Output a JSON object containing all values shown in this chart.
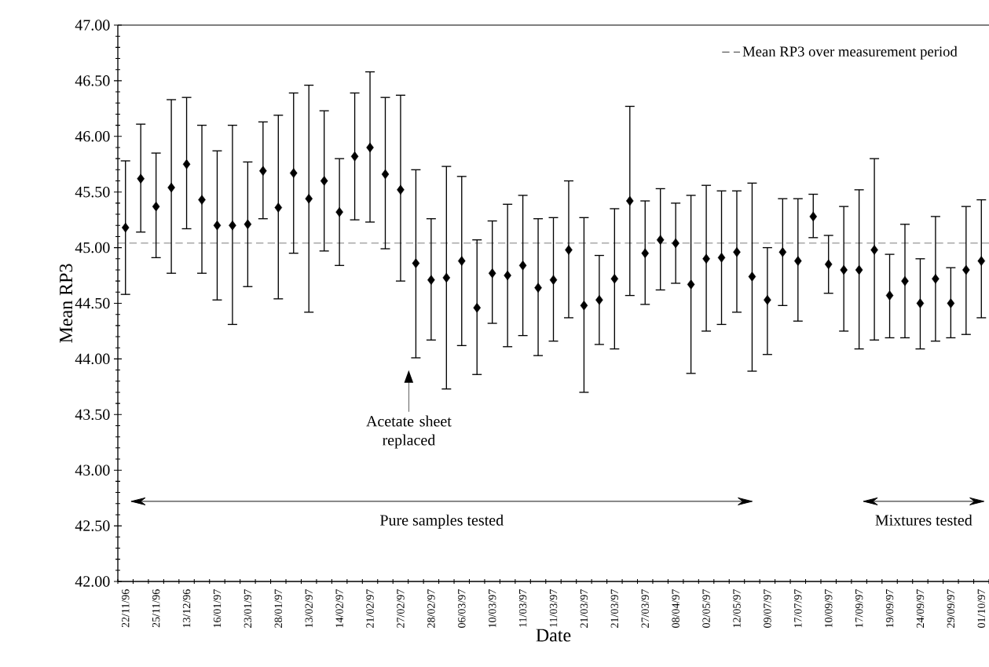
{
  "chart_data": {
    "type": "scatter",
    "xlabel": "Date",
    "ylabel": "Mean RP3",
    "categories": [
      "22/11/96",
      null,
      "25/11/96",
      null,
      "13/12/96",
      null,
      "16/01/97",
      null,
      "23/01/97",
      null,
      "28/01/97",
      null,
      "13/02/97",
      null,
      "14/02/97",
      null,
      "21/02/97",
      null,
      "27/02/97",
      null,
      "28/02/97",
      null,
      "06/03/97",
      null,
      "10/03/97",
      null,
      "11/03/97",
      null,
      "11/03/97",
      null,
      "21/03/97",
      null,
      "21/03/97",
      null,
      "27/03/97",
      null,
      "08/04/97",
      null,
      "02/05/97",
      null,
      "12/05/97",
      null,
      "09/07/97",
      null,
      "17/07/97",
      null,
      "10/09/97",
      null,
      "17/09/97",
      null,
      "19/09/97",
      null,
      "24/09/97",
      null,
      "29/09/97",
      null,
      "01/10/97"
    ],
    "series": [
      {
        "color": "#000000",
        "values": [
          45.18,
          45.62,
          45.37,
          45.54,
          45.75,
          45.43,
          45.2,
          45.2,
          45.21,
          45.69,
          45.36,
          45.67,
          45.44,
          45.6,
          45.32,
          45.82,
          45.9,
          45.66,
          45.52,
          44.86,
          44.71,
          44.73,
          44.88,
          44.46,
          44.77,
          44.75,
          44.84,
          44.64,
          44.71,
          44.98,
          44.48,
          44.53,
          44.72,
          45.42,
          44.95,
          45.07,
          45.04,
          44.67,
          44.9,
          44.91,
          44.96,
          44.74,
          44.53,
          44.96,
          44.88,
          45.28,
          44.85,
          44.8,
          44.8,
          44.98,
          44.57,
          44.7,
          44.5,
          44.72,
          44.5,
          44.8,
          44.88
        ],
        "errors": [
          [
            44.58,
            45.78
          ],
          [
            45.14,
            46.11
          ],
          [
            44.91,
            45.85
          ],
          [
            44.77,
            46.33
          ],
          [
            45.17,
            46.35
          ],
          [
            44.77,
            46.1
          ],
          [
            44.53,
            45.87
          ],
          [
            44.31,
            46.1
          ],
          [
            44.65,
            45.77
          ],
          [
            45.26,
            46.13
          ],
          [
            44.54,
            46.19
          ],
          [
            44.95,
            46.39
          ],
          [
            44.42,
            46.46
          ],
          [
            44.97,
            46.23
          ],
          [
            44.84,
            45.8
          ],
          [
            45.25,
            46.39
          ],
          [
            45.23,
            46.58
          ],
          [
            44.99,
            46.35
          ],
          [
            44.7,
            46.37
          ],
          [
            44.01,
            45.7
          ],
          [
            44.17,
            45.26
          ],
          [
            43.73,
            45.73
          ],
          [
            44.12,
            45.64
          ],
          [
            43.86,
            45.07
          ],
          [
            44.32,
            45.24
          ],
          [
            44.11,
            45.39
          ],
          [
            44.21,
            45.47
          ],
          [
            44.03,
            45.26
          ],
          [
            44.16,
            45.27
          ],
          [
            44.37,
            45.6
          ],
          [
            43.7,
            45.27
          ],
          [
            44.13,
            44.93
          ],
          [
            44.09,
            45.35
          ],
          [
            44.57,
            46.27
          ],
          [
            44.49,
            45.42
          ],
          [
            44.62,
            45.53
          ],
          [
            44.68,
            45.4
          ],
          [
            43.87,
            45.47
          ],
          [
            44.25,
            45.56
          ],
          [
            44.31,
            45.51
          ],
          [
            44.42,
            45.51
          ],
          [
            43.89,
            45.58
          ],
          [
            44.04,
            45.0
          ],
          [
            44.48,
            45.44
          ],
          [
            44.34,
            45.44
          ],
          [
            45.09,
            45.48
          ],
          [
            44.59,
            45.11
          ],
          [
            44.25,
            45.37
          ],
          [
            44.09,
            45.52
          ],
          [
            44.17,
            45.8
          ],
          [
            44.19,
            44.94
          ],
          [
            44.19,
            45.21
          ],
          [
            44.09,
            44.9
          ],
          [
            44.16,
            45.28
          ],
          [
            44.19,
            44.82
          ],
          [
            44.22,
            45.37
          ],
          [
            44.37,
            45.43
          ]
        ]
      }
    ],
    "marker": "diamond",
    "ylim": [
      42,
      47
    ],
    "yticks": [
      {
        "value": 42,
        "label": "42.00"
      },
      {
        "value": 42.5,
        "label": "42.50"
      },
      {
        "value": 43,
        "label": "43.00"
      },
      {
        "value": 43.5,
        "label": "43.50"
      },
      {
        "value": 44,
        "label": "44.00"
      },
      {
        "value": 44.5,
        "label": "44.50"
      },
      {
        "value": 45,
        "label": "45.00"
      },
      {
        "value": 45.5,
        "label": "45.50"
      },
      {
        "value": 46,
        "label": "46.00"
      },
      {
        "value": 46.5,
        "label": "46.50"
      },
      {
        "value": 47,
        "label": "47.00"
      }
    ],
    "ref_lines": [
      {
        "axis": "y",
        "value": 45.04,
        "label": "Mean RP3 over measurement period",
        "line_style": "dashed",
        "color": "#000000"
      }
    ],
    "legend": "top right",
    "annotations": [
      "Acetate sheet replaced",
      "Pure samples tested",
      "Mixtures tested"
    ]
  }
}
